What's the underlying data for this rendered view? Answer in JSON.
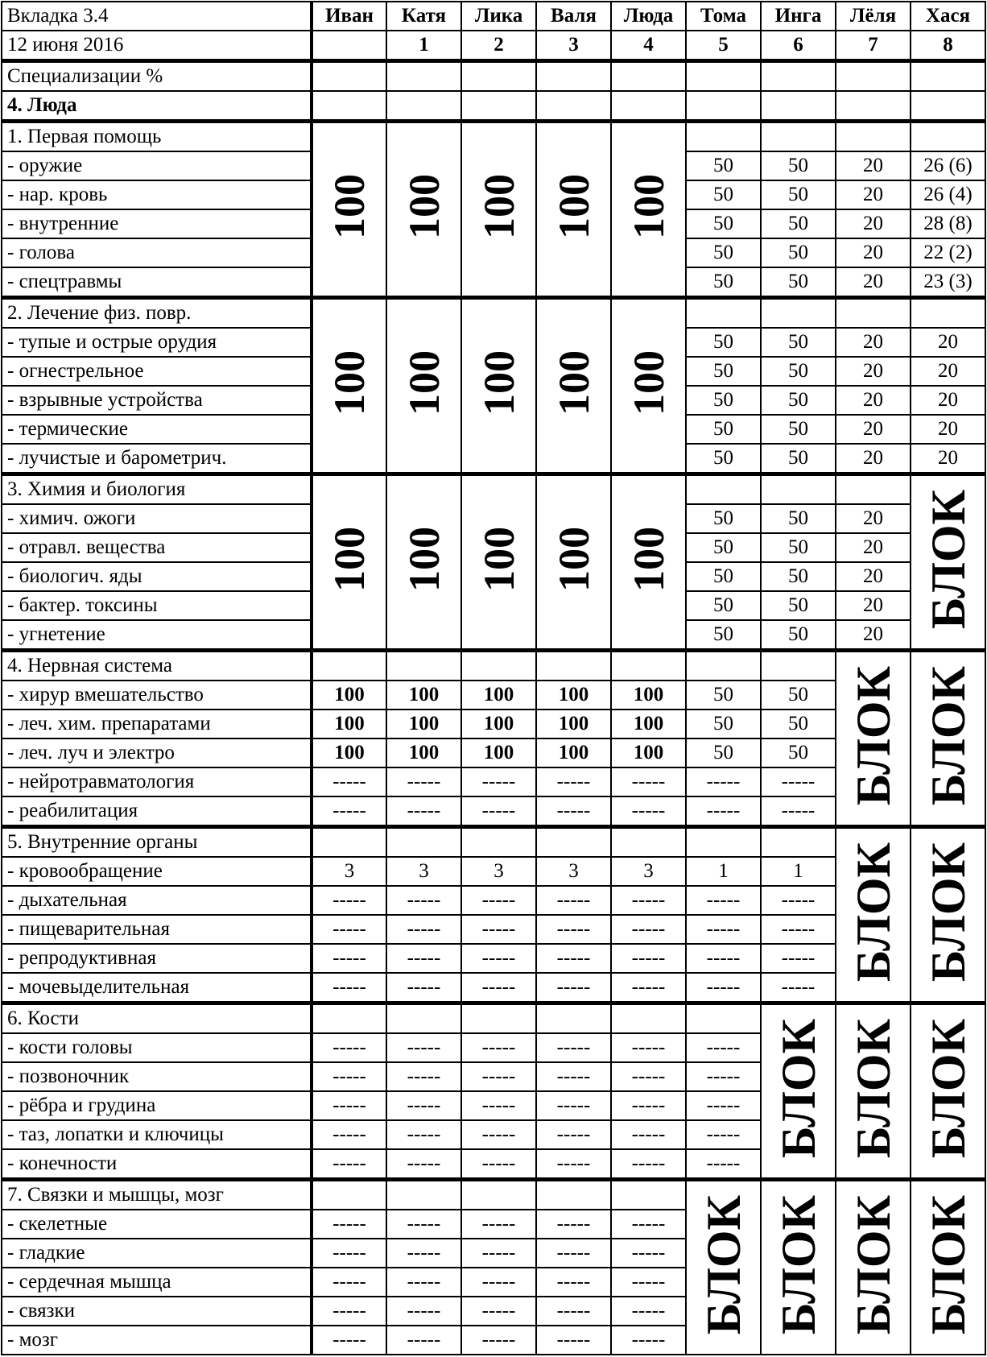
{
  "header": {
    "tab": "Вкладка 3.4",
    "date": "12 июня 2016",
    "columns": [
      {
        "name": "Иван",
        "num": ""
      },
      {
        "name": "Катя",
        "num": "1"
      },
      {
        "name": "Лика",
        "num": "2"
      },
      {
        "name": "Валя",
        "num": "3"
      },
      {
        "name": "Люда",
        "num": "4"
      },
      {
        "name": "Тома",
        "num": "5"
      },
      {
        "name": "Инга",
        "num": "6"
      },
      {
        "name": "Лёля",
        "num": "7"
      },
      {
        "name": "Хася",
        "num": "8"
      }
    ],
    "subtitle": "Специализации %",
    "person": "4. Люда"
  },
  "sections": [
    {
      "title": "1. Первая помощь",
      "merged": {
        "0": "100",
        "1": "100",
        "2": "100",
        "3": "100",
        "4": "100"
      },
      "rows": [
        {
          "label": "- оружие",
          "values": [
            null,
            null,
            null,
            null,
            null,
            "50",
            "50",
            "20",
            "26 (6)"
          ]
        },
        {
          "label": "- нар. кровь",
          "values": [
            null,
            null,
            null,
            null,
            null,
            "50",
            "50",
            "20",
            "26 (4)"
          ]
        },
        {
          "label": "- внутренние",
          "values": [
            null,
            null,
            null,
            null,
            null,
            "50",
            "50",
            "20",
            "28 (8)"
          ]
        },
        {
          "label": "- голова",
          "values": [
            null,
            null,
            null,
            null,
            null,
            "50",
            "50",
            "20",
            "22 (2)"
          ]
        },
        {
          "label": "- спецтравмы",
          "values": [
            null,
            null,
            null,
            null,
            null,
            "50",
            "50",
            "20",
            "23 (3)"
          ]
        }
      ]
    },
    {
      "title": "2. Лечение физ. повр.",
      "merged": {
        "0": "100",
        "1": "100",
        "2": "100",
        "3": "100",
        "4": "100"
      },
      "rows": [
        {
          "label": "- тупые и острые орудия",
          "values": [
            null,
            null,
            null,
            null,
            null,
            "50",
            "50",
            "20",
            "20"
          ]
        },
        {
          "label": "- огнестрельное",
          "values": [
            null,
            null,
            null,
            null,
            null,
            "50",
            "50",
            "20",
            "20"
          ]
        },
        {
          "label": "- взрывные устройства",
          "values": [
            null,
            null,
            null,
            null,
            null,
            "50",
            "50",
            "20",
            "20"
          ]
        },
        {
          "label": "- термические",
          "values": [
            null,
            null,
            null,
            null,
            null,
            "50",
            "50",
            "20",
            "20"
          ]
        },
        {
          "label": "- лучистые и барометрич.",
          "values": [
            null,
            null,
            null,
            null,
            null,
            "50",
            "50",
            "20",
            "20"
          ]
        }
      ]
    },
    {
      "title": "3. Химия и биология",
      "merged": {
        "0": "100",
        "1": "100",
        "2": "100",
        "3": "100",
        "4": "100",
        "8": "БЛОК"
      },
      "rows": [
        {
          "label": "- химич. ожоги",
          "values": [
            null,
            null,
            null,
            null,
            null,
            "50",
            "50",
            "20",
            null
          ]
        },
        {
          "label": "- отравл. вещества",
          "values": [
            null,
            null,
            null,
            null,
            null,
            "50",
            "50",
            "20",
            null
          ]
        },
        {
          "label": "- биологич. яды",
          "values": [
            null,
            null,
            null,
            null,
            null,
            "50",
            "50",
            "20",
            null
          ]
        },
        {
          "label": "- бактер. токсины",
          "values": [
            null,
            null,
            null,
            null,
            null,
            "50",
            "50",
            "20",
            null
          ]
        },
        {
          "label": "- угнетение",
          "values": [
            null,
            null,
            null,
            null,
            null,
            "50",
            "50",
            "20",
            null
          ]
        }
      ]
    },
    {
      "title": "4. Нервная система",
      "merged": {
        "7": "БЛОК",
        "8": "БЛОК"
      },
      "bold_rows": [
        0,
        1,
        2
      ],
      "rows": [
        {
          "label": "- хирур вмешательство",
          "values": [
            "100",
            "100",
            "100",
            "100",
            "100",
            "50",
            "50",
            null,
            null
          ]
        },
        {
          "label": "- леч. хим. препаратами",
          "values": [
            "100",
            "100",
            "100",
            "100",
            "100",
            "50",
            "50",
            null,
            null
          ]
        },
        {
          "label": "- леч. луч и электро",
          "values": [
            "100",
            "100",
            "100",
            "100",
            "100",
            "50",
            "50",
            null,
            null
          ]
        },
        {
          "label": "- нейротравматология",
          "values": [
            "-----",
            "-----",
            "-----",
            "-----",
            "-----",
            "-----",
            "-----",
            null,
            null
          ]
        },
        {
          "label": "- реабилитация",
          "values": [
            "-----",
            "-----",
            "-----",
            "-----",
            "-----",
            "-----",
            "-----",
            null,
            null
          ]
        }
      ]
    },
    {
      "title": "5. Внутренние органы",
      "merged": {
        "7": "БЛОК",
        "8": "БЛОК"
      },
      "rows": [
        {
          "label": "- кровообращение",
          "values": [
            "3",
            "3",
            "3",
            "3",
            "3",
            "1",
            "1",
            null,
            null
          ]
        },
        {
          "label": "- дыхательная",
          "values": [
            "-----",
            "-----",
            "-----",
            "-----",
            "-----",
            "-----",
            "-----",
            null,
            null
          ]
        },
        {
          "label": "- пищеварительная",
          "values": [
            "-----",
            "-----",
            "-----",
            "-----",
            "-----",
            "-----",
            "-----",
            null,
            null
          ]
        },
        {
          "label": "- репродуктивная",
          "values": [
            "-----",
            "-----",
            "-----",
            "-----",
            "-----",
            "-----",
            "-----",
            null,
            null
          ]
        },
        {
          "label": "- мочевыделительная",
          "values": [
            "-----",
            "-----",
            "-----",
            "-----",
            "-----",
            "-----",
            "-----",
            null,
            null
          ]
        }
      ]
    },
    {
      "title": "6. Кости",
      "merged": {
        "6": "БЛОК",
        "7": "БЛОК",
        "8": "БЛОК"
      },
      "rows": [
        {
          "label": "- кости головы",
          "values": [
            "-----",
            "-----",
            "-----",
            "-----",
            "-----",
            "-----",
            null,
            null,
            null
          ]
        },
        {
          "label": "- позвоночник",
          "values": [
            "-----",
            "-----",
            "-----",
            "-----",
            "-----",
            "-----",
            null,
            null,
            null
          ]
        },
        {
          "label": "- рёбра и грудина",
          "values": [
            "-----",
            "-----",
            "-----",
            "-----",
            "-----",
            "-----",
            null,
            null,
            null
          ]
        },
        {
          "label": "- таз, лопатки и ключицы",
          "values": [
            "-----",
            "-----",
            "-----",
            "-----",
            "-----",
            "-----",
            null,
            null,
            null
          ]
        },
        {
          "label": "- конечности",
          "values": [
            "-----",
            "-----",
            "-----",
            "-----",
            "-----",
            "-----",
            null,
            null,
            null
          ]
        }
      ]
    },
    {
      "title": "7. Связки и мышцы, мозг",
      "merged": {
        "5": "БЛОК",
        "6": "БЛОК",
        "7": "БЛОК",
        "8": "БЛОК"
      },
      "rows": [
        {
          "label": "- скелетные",
          "values": [
            "-----",
            "-----",
            "-----",
            "-----",
            "-----",
            null,
            null,
            null,
            null
          ]
        },
        {
          "label": "- гладкие",
          "values": [
            "-----",
            "-----",
            "-----",
            "-----",
            "-----",
            null,
            null,
            null,
            null
          ]
        },
        {
          "label": "- сердечная мышца",
          "values": [
            "-----",
            "-----",
            "-----",
            "-----",
            "-----",
            null,
            null,
            null,
            null
          ]
        },
        {
          "label": "- связки",
          "values": [
            "-----",
            "-----",
            "-----",
            "-----",
            "-----",
            null,
            null,
            null,
            null
          ]
        },
        {
          "label": "- мозг",
          "values": [
            "-----",
            "-----",
            "-----",
            "-----",
            "-----",
            null,
            null,
            null,
            null
          ]
        }
      ]
    }
  ]
}
